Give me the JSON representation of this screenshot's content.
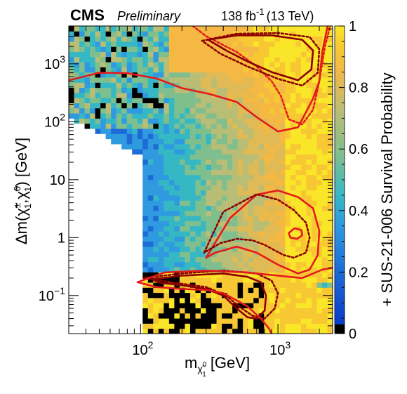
{
  "header": {
    "experiment": "CMS",
    "status": "Preliminary",
    "luminosity": "138 fb",
    "luminosity_exponent": "-1",
    "energy": "(13 TeV)"
  },
  "chart_data": {
    "type": "heatmap",
    "title": "",
    "xlabel_main": "m",
    "xlabel_sub": "χ̃",
    "xlabel_sup": "0",
    "xlabel_subsub": "1",
    "xlabel_units": "[GeV]",
    "ylabel": "Δm(χ̃±1, χ̃01) [GeV]",
    "ylabel_main": "Δm(",
    "ylabel_chi_pm": "χ̃",
    "ylabel_chi_pm_sup": "±",
    "ylabel_chi_pm_sub": "1",
    "ylabel_chi_0": "χ̃",
    "ylabel_chi_0_sup": "0",
    "ylabel_chi_0_sub": "1",
    "ylabel_units": ") [GeV]",
    "zlabel": "+ SUS-21-006 Survival Probability",
    "x_scale": "log",
    "y_scale": "log",
    "xlim": [
      30,
      2500
    ],
    "ylim": [
      0.022,
      4500
    ],
    "zlim": [
      0,
      1
    ],
    "x_ticks": [
      {
        "value": 100,
        "base": "10",
        "exp": "2"
      },
      {
        "value": 1000,
        "base": "10",
        "exp": "3"
      }
    ],
    "y_ticks": [
      {
        "value": 1000,
        "label": "10",
        "exp": "3"
      },
      {
        "value": 100,
        "label": "10",
        "exp": "2"
      },
      {
        "value": 10,
        "label": "10",
        "exp": ""
      },
      {
        "value": 1,
        "label": "1",
        "exp": ""
      },
      {
        "value": 0.1,
        "label": "10",
        "exp": "−1"
      }
    ],
    "z_ticks": [
      "0",
      "0.2",
      "0.4",
      "0.6",
      "0.8",
      "1"
    ],
    "z_tick_values": [
      0,
      0.2,
      0.4,
      0.6,
      0.8,
      1
    ],
    "colorscale": [
      "#000000",
      "#1c6bd6",
      "#2f9ae0",
      "#36b8c4",
      "#7fbf8e",
      "#b9bd76",
      "#e0ba55",
      "#f5b842",
      "#f7c833",
      "#fae629"
    ],
    "contours": [
      {
        "style": "solid",
        "color": "#e41a1c",
        "points": [
          [
            30,
            520
          ],
          [
            50,
            700
          ],
          [
            80,
            690
          ],
          [
            130,
            560
          ],
          [
            200,
            380
          ],
          [
            320,
            300
          ],
          [
            500,
            220
          ],
          [
            700,
            120
          ],
          [
            1000,
            68
          ],
          [
            1400,
            80
          ],
          [
            1800,
            250
          ],
          [
            2000,
            500
          ],
          [
            2100,
            1600
          ],
          [
            2300,
            4500
          ]
        ]
      },
      {
        "style": "dotted",
        "color": "#e41a1c",
        "points": [
          [
            240,
            4500
          ],
          [
            300,
            3000
          ],
          [
            500,
            1600
          ],
          [
            700,
            900
          ],
          [
            900,
            500
          ],
          [
            1050,
            280
          ],
          [
            1200,
            110
          ],
          [
            1500,
            90
          ],
          [
            1800,
            160
          ],
          [
            2000,
            500
          ],
          [
            2200,
            2000
          ],
          [
            2400,
            4500
          ]
        ]
      },
      {
        "style": "solid",
        "color": "#8b0000",
        "points": [
          [
            310,
            2600
          ],
          [
            500,
            3100
          ],
          [
            900,
            3100
          ],
          [
            1500,
            2600
          ],
          [
            1800,
            1700
          ],
          [
            1750,
            800
          ],
          [
            1400,
            520
          ],
          [
            900,
            720
          ],
          [
            600,
            1100
          ],
          [
            420,
            1700
          ],
          [
            310,
            2600
          ]
        ]
      },
      {
        "style": "dotted",
        "color": "#8b0000",
        "points": [
          [
            280,
            2500
          ],
          [
            500,
            3300
          ],
          [
            1000,
            3400
          ],
          [
            1700,
            2900
          ],
          [
            2000,
            1800
          ],
          [
            1950,
            700
          ],
          [
            1500,
            420
          ],
          [
            1000,
            550
          ],
          [
            600,
            900
          ],
          [
            380,
            1500
          ],
          [
            280,
            2500
          ]
        ]
      },
      {
        "style": "solid",
        "color": "#e41a1c",
        "points": [
          [
            300,
            0.45
          ],
          [
            450,
            2.2
          ],
          [
            700,
            5.5
          ],
          [
            1000,
            6.5
          ],
          [
            1400,
            5.0
          ],
          [
            1800,
            3.2
          ],
          [
            2000,
            1.3
          ],
          [
            1950,
            0.5
          ],
          [
            1700,
            0.28
          ],
          [
            1400,
            0.24
          ],
          [
            1000,
            0.34
          ],
          [
            700,
            0.55
          ],
          [
            500,
            0.7
          ],
          [
            350,
            0.55
          ],
          [
            300,
            0.45
          ]
        ]
      },
      {
        "style": "dotted",
        "color": "#8b0000",
        "points": [
          [
            290,
            0.55
          ],
          [
            400,
            2.8
          ],
          [
            700,
            5.6
          ],
          [
            1000,
            4.5
          ],
          [
            1300,
            3.0
          ],
          [
            1600,
            1.8
          ],
          [
            1700,
            1.0
          ],
          [
            1600,
            0.55
          ],
          [
            1300,
            0.45
          ],
          [
            1100,
            0.5
          ],
          [
            950,
            0.6
          ],
          [
            800,
            0.75
          ],
          [
            650,
            0.9
          ],
          [
            500,
            0.95
          ],
          [
            380,
            0.8
          ],
          [
            290,
            0.55
          ]
        ]
      },
      {
        "style": "solid",
        "color": "#e41a1c",
        "points": [
          [
            1200,
            1.2
          ],
          [
            1320,
            1.45
          ],
          [
            1480,
            1.35
          ],
          [
            1500,
            1.1
          ],
          [
            1380,
            0.95
          ],
          [
            1230,
            1.0
          ],
          [
            1200,
            1.2
          ]
        ]
      },
      {
        "style": "solid",
        "color": "#8b0000",
        "points": [
          [
            120,
            0.19
          ],
          [
            200,
            0.22
          ],
          [
            400,
            0.24
          ],
          [
            600,
            0.21
          ],
          [
            750,
            0.17
          ],
          [
            820,
            0.1
          ],
          [
            800,
            0.055
          ],
          [
            700,
            0.04
          ],
          [
            600,
            0.042
          ],
          [
            500,
            0.06
          ],
          [
            400,
            0.1
          ],
          [
            300,
            0.13
          ],
          [
            200,
            0.15
          ],
          [
            140,
            0.165
          ],
          [
            120,
            0.19
          ]
        ]
      },
      {
        "style": "dotted",
        "color": "#8b0000",
        "points": [
          [
            105,
            0.2
          ],
          [
            200,
            0.24
          ],
          [
            400,
            0.27
          ],
          [
            700,
            0.24
          ],
          [
            900,
            0.18
          ],
          [
            1000,
            0.11
          ],
          [
            950,
            0.06
          ],
          [
            800,
            0.04
          ],
          [
            650,
            0.045
          ],
          [
            520,
            0.065
          ],
          [
            420,
            0.1
          ],
          [
            300,
            0.14
          ],
          [
            180,
            0.165
          ],
          [
            105,
            0.2
          ]
        ]
      },
      {
        "style": "solid",
        "color": "#e41a1c",
        "points": [
          [
            95,
            0.17
          ],
          [
            150,
            0.25
          ],
          [
            300,
            0.27
          ],
          [
            600,
            0.25
          ],
          [
            1000,
            0.22
          ],
          [
            1500,
            0.2
          ],
          [
            2100,
            0.28
          ],
          [
            2500,
            0.3
          ]
        ]
      },
      {
        "style": "solid",
        "color": "#e41a1c",
        "points": [
          [
            95,
            0.17
          ],
          [
            130,
            0.14
          ],
          [
            200,
            0.13
          ],
          [
            300,
            0.125
          ],
          [
            400,
            0.11
          ],
          [
            600,
            0.065
          ],
          [
            750,
            0.04
          ],
          [
            850,
            0.028
          ],
          [
            900,
            0.022
          ]
        ]
      }
    ]
  }
}
